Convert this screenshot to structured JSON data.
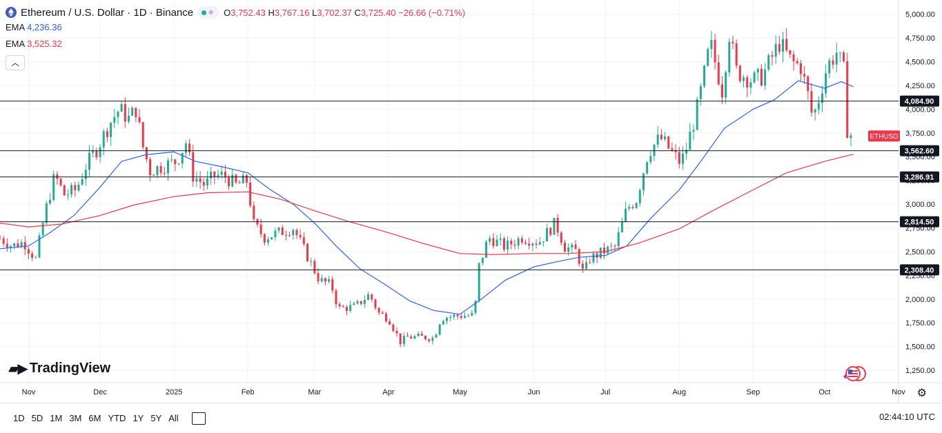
{
  "header": {
    "symbol_title": "Ethereum / U.S. Dollar · 1D · Binance",
    "ohlc": {
      "o_label": "O",
      "o": "3,752.43",
      "h_label": "H",
      "h": "3,767.16",
      "l_label": "L",
      "l": "3,702.37",
      "c_label": "C",
      "c": "3,725.40",
      "change": "−26.66 (−0.71%)"
    },
    "indicators": [
      {
        "name": "EMA",
        "value": "4,236.36",
        "color": "#2962ff"
      },
      {
        "name": "EMA",
        "value": "3,525.32",
        "color": "#f23645"
      }
    ],
    "collapse_icon": "chevron-up-icon"
  },
  "price_tag": {
    "label": "ETHUSD",
    "color": "#f23645"
  },
  "logo_text": "TradingView",
  "bottom_bar": {
    "timeframes": [
      "1D",
      "5D",
      "1M",
      "3M",
      "6M",
      "YTD",
      "1Y",
      "5Y",
      "All"
    ],
    "clock": "02:44:10 UTC"
  },
  "colors": {
    "up": "#22ab94",
    "down": "#f23645",
    "ema_fast": "#2962ff",
    "ema_slow": "#f23645",
    "grid": "#f0f3fa"
  },
  "chart_data": {
    "type": "candlestick",
    "title": "Ethereum / U.S. Dollar · 1D · Binance",
    "ylim": [
      1120,
      5150
    ],
    "y_ticks": [
      1250,
      1500,
      1750,
      2000,
      2250,
      2500,
      2750,
      3000,
      3250,
      3500,
      3750,
      4000,
      4250,
      4500,
      4750,
      5000
    ],
    "y_tick_labels": [
      "1,250.00",
      "1,500.00",
      "1,750.00",
      "2,000.00",
      "2,250.00",
      "2,500.00",
      "2,750.00",
      "3,000.00",
      "3,250.00",
      "3,500.00",
      "3,750.00",
      "4,000.00",
      "4,250.00",
      "4,500.00",
      "4,750.00",
      "5,000.00"
    ],
    "x_range": [
      "2024-10-20",
      "2025-11-01"
    ],
    "x_ticks": [
      {
        "date": "2024-11-01",
        "label": "Nov"
      },
      {
        "date": "2024-12-01",
        "label": "Dec"
      },
      {
        "date": "2025-01-01",
        "label": "2025"
      },
      {
        "date": "2025-02-01",
        "label": "Feb"
      },
      {
        "date": "2025-03-01",
        "label": "Mar"
      },
      {
        "date": "2025-04-01",
        "label": "Apr"
      },
      {
        "date": "2025-05-01",
        "label": "May"
      },
      {
        "date": "2025-06-01",
        "label": "Jun"
      },
      {
        "date": "2025-07-01",
        "label": "Jul"
      },
      {
        "date": "2025-08-01",
        "label": "Aug"
      },
      {
        "date": "2025-09-01",
        "label": "Sep"
      },
      {
        "date": "2025-10-01",
        "label": "Oct"
      },
      {
        "date": "2025-11-01",
        "label": "Nov"
      }
    ],
    "horizontal_levels": [
      {
        "value": 4084.9,
        "label": "4,084.90"
      },
      {
        "value": 3562.6,
        "label": "3,562.60"
      },
      {
        "value": 3286.91,
        "label": "3,286.91"
      },
      {
        "value": 2814.5,
        "label": "2,814.50"
      },
      {
        "value": 2308.4,
        "label": "2,308.40"
      }
    ],
    "last_price": 3725.4,
    "close_keypoints": [
      [
        "2024-10-20",
        2640
      ],
      [
        "2024-10-25",
        2560
      ],
      [
        "2024-10-30",
        2600
      ],
      [
        "2024-11-04",
        2420
      ],
      [
        "2024-11-08",
        2920
      ],
      [
        "2024-11-12",
        3300
      ],
      [
        "2024-11-16",
        3100
      ],
      [
        "2024-11-21",
        3150
      ],
      [
        "2024-11-25",
        3400
      ],
      [
        "2024-11-30",
        3600
      ],
      [
        "2024-12-05",
        3850
      ],
      [
        "2024-12-09",
        4000
      ],
      [
        "2024-12-13",
        3900
      ],
      [
        "2024-12-16",
        4000
      ],
      [
        "2024-12-19",
        3600
      ],
      [
        "2024-12-22",
        3350
      ],
      [
        "2024-12-27",
        3400
      ],
      [
        "2025-01-02",
        3450
      ],
      [
        "2025-01-06",
        3650
      ],
      [
        "2025-01-09",
        3300
      ],
      [
        "2025-01-14",
        3200
      ],
      [
        "2025-01-18",
        3300
      ],
      [
        "2025-01-22",
        3300
      ],
      [
        "2025-01-27",
        3200
      ],
      [
        "2025-02-01",
        3250
      ],
      [
        "2025-02-03",
        2800
      ],
      [
        "2025-02-08",
        2650
      ],
      [
        "2025-02-14",
        2700
      ],
      [
        "2025-02-20",
        2750
      ],
      [
        "2025-02-25",
        2500
      ],
      [
        "2025-03-03",
        2200
      ],
      [
        "2025-03-08",
        2150
      ],
      [
        "2025-03-11",
        1900
      ],
      [
        "2025-03-18",
        1920
      ],
      [
        "2025-03-24",
        2050
      ],
      [
        "2025-03-28",
        1850
      ],
      [
        "2025-04-01",
        1800
      ],
      [
        "2025-04-06",
        1550
      ],
      [
        "2025-04-09",
        1600
      ],
      [
        "2025-04-15",
        1600
      ],
      [
        "2025-04-20",
        1590
      ],
      [
        "2025-04-23",
        1800
      ],
      [
        "2025-04-28",
        1820
      ],
      [
        "2025-05-07",
        1830
      ],
      [
        "2025-05-09",
        2350
      ],
      [
        "2025-05-13",
        2650
      ],
      [
        "2025-05-20",
        2550
      ],
      [
        "2025-05-27",
        2650
      ],
      [
        "2025-06-03",
        2600
      ],
      [
        "2025-06-10",
        2800
      ],
      [
        "2025-06-14",
        2550
      ],
      [
        "2025-06-19",
        2500
      ],
      [
        "2025-06-22",
        2250
      ],
      [
        "2025-06-24",
        2420
      ],
      [
        "2025-06-30",
        2500
      ],
      [
        "2025-07-05",
        2550
      ],
      [
        "2025-07-10",
        2950
      ],
      [
        "2025-07-14",
        3050
      ],
      [
        "2025-07-19",
        3550
      ],
      [
        "2025-07-24",
        3700
      ],
      [
        "2025-08-01",
        3450
      ],
      [
        "2025-08-03",
        3500
      ],
      [
        "2025-08-08",
        3950
      ],
      [
        "2025-08-11",
        4300
      ],
      [
        "2025-08-14",
        4700
      ],
      [
        "2025-08-19",
        4200
      ],
      [
        "2025-08-22",
        4800
      ],
      [
        "2025-08-25",
        4400
      ],
      [
        "2025-09-01",
        4300
      ],
      [
        "2025-09-05",
        4350
      ],
      [
        "2025-09-12",
        4700
      ],
      [
        "2025-09-17",
        4500
      ],
      [
        "2025-09-21",
        4450
      ],
      [
        "2025-09-24",
        4150
      ],
      [
        "2025-09-26",
        3900
      ],
      [
        "2025-09-29",
        4150
      ],
      [
        "2025-10-02",
        4450
      ],
      [
        "2025-10-06",
        4600
      ],
      [
        "2025-10-09",
        4400
      ],
      [
        "2025-10-10",
        3800
      ],
      [
        "2025-10-12",
        3752
      ],
      [
        "2025-10-13",
        3725
      ]
    ],
    "series": [
      {
        "name": "EMA",
        "value_label": "4,236.36",
        "points": [
          [
            "2024-10-20",
            2530
          ],
          [
            "2024-11-01",
            2560
          ],
          [
            "2024-11-10",
            2700
          ],
          [
            "2024-11-20",
            2880
          ],
          [
            "2024-12-01",
            3180
          ],
          [
            "2024-12-10",
            3450
          ],
          [
            "2024-12-20",
            3520
          ],
          [
            "2025-01-01",
            3550
          ],
          [
            "2025-01-10",
            3450
          ],
          [
            "2025-01-20",
            3400
          ],
          [
            "2025-02-01",
            3330
          ],
          [
            "2025-02-10",
            3160
          ],
          [
            "2025-02-20",
            3000
          ],
          [
            "2025-03-01",
            2800
          ],
          [
            "2025-03-10",
            2560
          ],
          [
            "2025-03-20",
            2320
          ],
          [
            "2025-04-01",
            2130
          ],
          [
            "2025-04-10",
            1980
          ],
          [
            "2025-04-20",
            1880
          ],
          [
            "2025-05-01",
            1840
          ],
          [
            "2025-05-10",
            2000
          ],
          [
            "2025-05-20",
            2200
          ],
          [
            "2025-06-01",
            2340
          ],
          [
            "2025-06-10",
            2390
          ],
          [
            "2025-06-20",
            2440
          ],
          [
            "2025-07-01",
            2460
          ],
          [
            "2025-07-10",
            2560
          ],
          [
            "2025-07-20",
            2850
          ],
          [
            "2025-08-01",
            3150
          ],
          [
            "2025-08-10",
            3450
          ],
          [
            "2025-08-20",
            3800
          ],
          [
            "2025-09-01",
            4000
          ],
          [
            "2025-09-10",
            4100
          ],
          [
            "2025-09-20",
            4300
          ],
          [
            "2025-10-01",
            4220
          ],
          [
            "2025-10-08",
            4290
          ],
          [
            "2025-10-13",
            4236.36
          ]
        ]
      },
      {
        "name": "EMA",
        "value_label": "3,525.32",
        "points": [
          [
            "2024-10-20",
            2800
          ],
          [
            "2024-11-01",
            2760
          ],
          [
            "2024-11-15",
            2790
          ],
          [
            "2024-12-01",
            2880
          ],
          [
            "2024-12-15",
            2990
          ],
          [
            "2025-01-01",
            3080
          ],
          [
            "2025-01-15",
            3120
          ],
          [
            "2025-02-01",
            3130
          ],
          [
            "2025-02-15",
            3050
          ],
          [
            "2025-03-01",
            2930
          ],
          [
            "2025-03-15",
            2820
          ],
          [
            "2025-04-01",
            2700
          ],
          [
            "2025-04-15",
            2590
          ],
          [
            "2025-05-01",
            2480
          ],
          [
            "2025-05-15",
            2470
          ],
          [
            "2025-06-01",
            2480
          ],
          [
            "2025-06-15",
            2480
          ],
          [
            "2025-07-01",
            2500
          ],
          [
            "2025-07-15",
            2590
          ],
          [
            "2025-08-01",
            2740
          ],
          [
            "2025-08-15",
            2930
          ],
          [
            "2025-09-01",
            3150
          ],
          [
            "2025-09-15",
            3330
          ],
          [
            "2025-10-01",
            3450
          ],
          [
            "2025-10-13",
            3525.32
          ]
        ]
      }
    ]
  }
}
